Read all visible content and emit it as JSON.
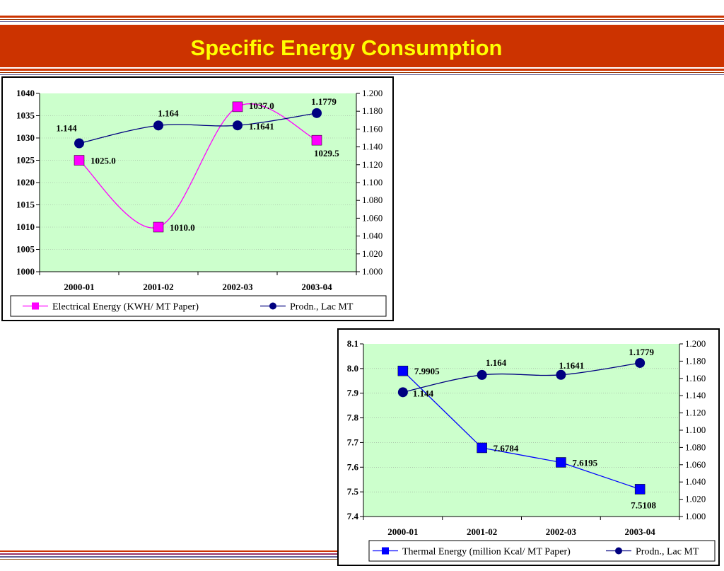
{
  "slide": {
    "title": "Specific Energy Consumption",
    "colors": {
      "banner": "#cc3300",
      "title": "#ffff00",
      "plot_bg": "#ccffcc"
    }
  },
  "chart_data": [
    {
      "type": "line",
      "categories": [
        "2000-01",
        "2001-02",
        "2002-03",
        "2003-04"
      ],
      "series": [
        {
          "name": "Electrical Energy (KWH/ MT Paper)",
          "axis": "left",
          "color": "#ff00ff",
          "marker": "square",
          "smooth": true,
          "values": [
            1025.0,
            1010.0,
            1037.0,
            1029.5
          ],
          "labels": [
            "1025.0",
            "1010.0",
            "1037.0",
            "1029.5"
          ]
        },
        {
          "name": "Prodn., Lac MT",
          "axis": "right",
          "color": "#000080",
          "marker": "circle",
          "smooth": true,
          "values": [
            1.144,
            1.164,
            1.1641,
            1.1779
          ],
          "labels": [
            "1.144",
            "1.164",
            "1.1641",
            "1.1779"
          ]
        }
      ],
      "y_left": {
        "min": 1000,
        "max": 1040,
        "ticks": [
          "1000",
          "1005",
          "1010",
          "1015",
          "1020",
          "1025",
          "1030",
          "1035",
          "1040"
        ]
      },
      "y_right": {
        "min": 1.0,
        "max": 1.2,
        "ticks": [
          "1.000",
          "1.020",
          "1.040",
          "1.060",
          "1.080",
          "1.100",
          "1.120",
          "1.140",
          "1.160",
          "1.180",
          "1.200"
        ]
      },
      "grid": true,
      "legend": "bottom"
    },
    {
      "type": "line",
      "categories": [
        "2000-01",
        "2001-02",
        "2002-03",
        "2003-04"
      ],
      "series": [
        {
          "name": "Thermal Energy (million Kcal/ MT Paper)",
          "axis": "left",
          "color": "#0000ff",
          "marker": "square",
          "smooth": false,
          "values": [
            7.9905,
            7.6784,
            7.6195,
            7.5108
          ],
          "labels": [
            "7.9905",
            "7.6784",
            "7.6195",
            "7.5108"
          ]
        },
        {
          "name": "Prodn., Lac MT",
          "axis": "right",
          "color": "#000080",
          "marker": "circle",
          "smooth": true,
          "values": [
            1.144,
            1.164,
            1.1641,
            1.1779
          ],
          "labels": [
            "1.144",
            "1.164",
            "1.1641",
            "1.1779"
          ]
        }
      ],
      "y_left": {
        "min": 7.4,
        "max": 8.1,
        "ticks": [
          "7.4",
          "7.5",
          "7.6",
          "7.7",
          "7.8",
          "7.9",
          "8.0",
          "8.1"
        ]
      },
      "y_right": {
        "min": 1.0,
        "max": 1.2,
        "ticks": [
          "1.000",
          "1.020",
          "1.040",
          "1.060",
          "1.080",
          "1.100",
          "1.120",
          "1.140",
          "1.160",
          "1.180",
          "1.200"
        ]
      },
      "grid": true,
      "legend": "bottom"
    }
  ]
}
